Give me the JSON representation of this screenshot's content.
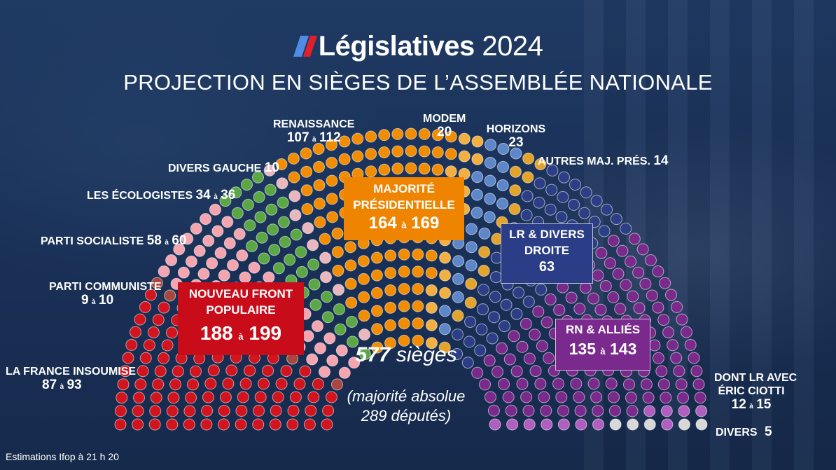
{
  "header": {
    "title_word": "Législatives",
    "title_year": "2024",
    "subtitle": "PROJECTION EN SIÈGES DE L’ASSEMBLÉE NATIONALE"
  },
  "colors": {
    "lfi": "#d2141e",
    "pcf": "#a8463f",
    "ps": "#f4a5b0",
    "eco": "#5aa744",
    "dvg": "#eab7be",
    "renaissance": "#f28c00",
    "modem": "#f3b040",
    "horizons": "#5e87c9",
    "autres_maj": "#e4a32a",
    "lr": "#2c3f86",
    "rn": "#7a2a8a",
    "lr_ciotti": "#b05fc0",
    "divers": "#d8d8d8",
    "nfp_box": "#c80c1a",
    "maj_box": "#ee8400",
    "lr_box": "#2a3d86",
    "rn_box": "#7a2a8c"
  },
  "labels": {
    "lfi": {
      "name": "LA FRANCE INSOUMISE",
      "low": "87",
      "sep": "à",
      "high": "93"
    },
    "pcf": {
      "name": "PARTI COMMUNISTE",
      "low": "9",
      "sep": "à",
      "high": "10"
    },
    "ps": {
      "name": "PARTI SOCIALISTE",
      "low": "58",
      "sep": "à",
      "high": "60"
    },
    "eco": {
      "name": "LES ÉCOLOGISTES",
      "low": "34",
      "sep": "à",
      "high": "36"
    },
    "dvg": {
      "name": "DIVERS GAUCHE",
      "value": "10"
    },
    "renaissance": {
      "name": "RENAISSANCE",
      "low": "107",
      "sep": "à",
      "high": "112"
    },
    "modem": {
      "name": "MODEM",
      "value": "20"
    },
    "horizons": {
      "name": "HORIZONS",
      "value": "23"
    },
    "autres_maj": {
      "name": "AUTRES MAJ. PRÉS.",
      "value": "14"
    },
    "lr_ciotti": {
      "name_1": "DONT LR AVEC",
      "name_2": "ÉRIC CIOTTI",
      "low": "12",
      "sep": "à",
      "high": "15"
    },
    "divers": {
      "name": "DIVERS",
      "value": "5"
    }
  },
  "boxes": {
    "nfp": {
      "line1": "NOUVEAU FRONT",
      "line2": "POPULAIRE",
      "low": "188",
      "sep": "à",
      "high": "199"
    },
    "maj": {
      "line1": "MAJORITÉ",
      "line2": "PRÉSIDENTIELLE",
      "low": "164",
      "sep": "à",
      "high": "169"
    },
    "lr": {
      "line1": "LR & DIVERS",
      "line2": "DROITE",
      "value": "63"
    },
    "rn": {
      "line1": "RN & ALLIÉS",
      "low": "135",
      "sep": "à",
      "high": "143"
    }
  },
  "center": {
    "total": "577",
    "total_word": "sièges",
    "line1": "(majorité absolue",
    "line2": "289 députés)"
  },
  "source": "Estimations Ifop à 21 h 20",
  "chart_data": {
    "type": "hemicycle",
    "total_seats": 577,
    "majority": 289,
    "series": [
      {
        "name": "LA FRANCE INSOUMISE",
        "low": 87,
        "high": 93,
        "color_key": "lfi"
      },
      {
        "name": "PARTI COMMUNISTE",
        "low": 9,
        "high": 10,
        "color_key": "pcf"
      },
      {
        "name": "PARTI SOCIALISTE",
        "low": 58,
        "high": 60,
        "color_key": "ps"
      },
      {
        "name": "LES ÉCOLOGISTES",
        "low": 34,
        "high": 36,
        "color_key": "eco"
      },
      {
        "name": "DIVERS GAUCHE",
        "value": 10,
        "color_key": "dvg"
      },
      {
        "name": "RENAISSANCE",
        "low": 107,
        "high": 112,
        "color_key": "renaissance"
      },
      {
        "name": "MODEM",
        "value": 20,
        "color_key": "modem"
      },
      {
        "name": "HORIZONS",
        "value": 23,
        "color_key": "horizons"
      },
      {
        "name": "AUTRES MAJ. PRÉS.",
        "value": 14,
        "color_key": "autres_maj"
      },
      {
        "name": "LR & DIVERS DROITE",
        "value": 63,
        "color_key": "lr"
      },
      {
        "name": "RN & ALLIÉS",
        "low": 135,
        "high": 143,
        "color_key": "rn"
      },
      {
        "name": "DONT LR AVEC ÉRIC CIOTTI",
        "low": 12,
        "high": 15,
        "color_key": "lr_ciotti"
      },
      {
        "name": "DIVERS",
        "value": 5,
        "color_key": "divers"
      }
    ],
    "blocs": [
      {
        "name": "NOUVEAU FRONT POPULAIRE",
        "low": 188,
        "high": 199
      },
      {
        "name": "MAJORITÉ PRÉSIDENTIELLE",
        "low": 164,
        "high": 169
      },
      {
        "name": "LR & DIVERS DROITE",
        "value": 63
      },
      {
        "name": "RN & ALLIÉS",
        "low": 135,
        "high": 143
      }
    ]
  }
}
